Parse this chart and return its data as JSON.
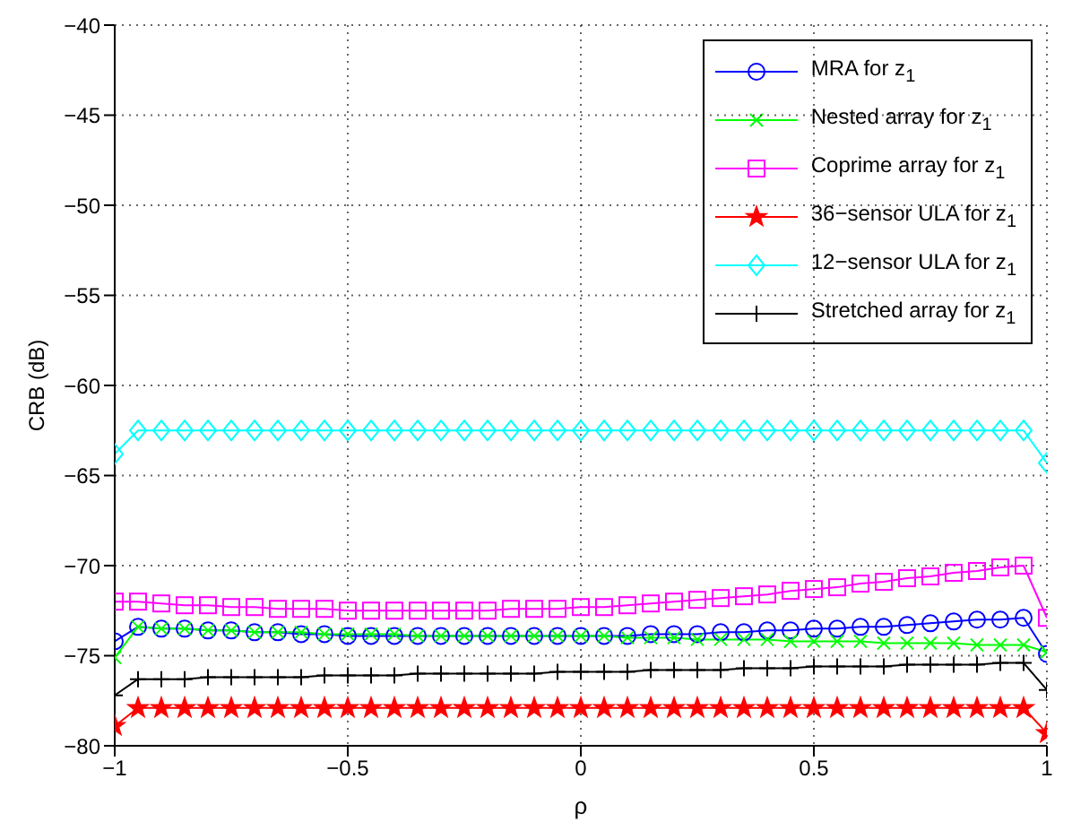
{
  "chart_data": {
    "type": "line",
    "xlabel": "ρ",
    "ylabel": "CRB (dB)",
    "x": [
      -1,
      -0.95,
      -0.9,
      -0.85,
      -0.8,
      -0.75,
      -0.7,
      -0.65,
      -0.6,
      -0.55,
      -0.5,
      -0.45,
      -0.4,
      -0.35,
      -0.3,
      -0.25,
      -0.2,
      -0.15,
      -0.1,
      -0.05,
      0,
      0.05,
      0.1,
      0.15,
      0.2,
      0.25,
      0.3,
      0.35,
      0.4,
      0.45,
      0.5,
      0.55,
      0.6,
      0.65,
      0.7,
      0.75,
      0.8,
      0.85,
      0.9,
      0.95,
      1
    ],
    "xlim": [
      -1,
      1
    ],
    "xticks": [
      -1,
      -0.5,
      0,
      0.5,
      1
    ],
    "ylim": [
      -80,
      -40
    ],
    "yticks": [
      -80,
      -75,
      -70,
      -65,
      -60,
      -55,
      -50,
      -45,
      -40
    ],
    "grid": true,
    "legend": "top right",
    "line_style": "solid",
    "series": [
      {
        "name": "MRA for z$_{1}$",
        "color": "#0000ff",
        "marker": "circle",
        "values": [
          -74.2,
          -73.4,
          -73.5,
          -73.5,
          -73.6,
          -73.6,
          -73.7,
          -73.7,
          -73.8,
          -73.8,
          -73.9,
          -73.9,
          -73.9,
          -73.9,
          -73.9,
          -73.9,
          -73.9,
          -73.9,
          -73.9,
          -73.9,
          -73.9,
          -73.9,
          -73.9,
          -73.8,
          -73.8,
          -73.8,
          -73.7,
          -73.7,
          -73.6,
          -73.6,
          -73.5,
          -73.5,
          -73.4,
          -73.4,
          -73.3,
          -73.2,
          -73.1,
          -73.0,
          -73.0,
          -72.9,
          -74.9
        ]
      },
      {
        "name": "Nested array for z$_{1}$",
        "color": "#00ff00",
        "marker": "cross",
        "values": [
          -75.1,
          -73.4,
          -73.5,
          -73.5,
          -73.6,
          -73.6,
          -73.7,
          -73.7,
          -73.7,
          -73.8,
          -73.8,
          -73.8,
          -73.8,
          -73.9,
          -73.9,
          -73.9,
          -73.9,
          -73.9,
          -73.9,
          -73.9,
          -73.9,
          -73.9,
          -74.0,
          -74.0,
          -74.0,
          -74.1,
          -74.1,
          -74.1,
          -74.1,
          -74.2,
          -74.2,
          -74.2,
          -74.2,
          -74.3,
          -74.3,
          -74.3,
          -74.3,
          -74.4,
          -74.4,
          -74.4,
          -74.8
        ]
      },
      {
        "name": "Coprime array for z$_{1}$",
        "color": "#ff00ff",
        "marker": "square",
        "values": [
          -72.0,
          -72.0,
          -72.1,
          -72.2,
          -72.2,
          -72.3,
          -72.3,
          -72.4,
          -72.4,
          -72.4,
          -72.5,
          -72.5,
          -72.5,
          -72.5,
          -72.5,
          -72.5,
          -72.5,
          -72.4,
          -72.4,
          -72.4,
          -72.3,
          -72.3,
          -72.2,
          -72.1,
          -72.0,
          -71.9,
          -71.8,
          -71.7,
          -71.6,
          -71.4,
          -71.3,
          -71.2,
          -71.0,
          -70.9,
          -70.7,
          -70.6,
          -70.4,
          -70.3,
          -70.1,
          -70.0,
          -72.9
        ]
      },
      {
        "name": "36−sensor ULA for z$_{1}$",
        "color": "#ff0000",
        "marker": "star",
        "values": [
          -78.9,
          -77.9,
          -77.9,
          -77.9,
          -77.9,
          -77.9,
          -77.9,
          -77.9,
          -77.9,
          -77.9,
          -77.9,
          -77.9,
          -77.9,
          -77.9,
          -77.9,
          -77.9,
          -77.9,
          -77.9,
          -77.9,
          -77.9,
          -77.9,
          -77.9,
          -77.9,
          -77.9,
          -77.9,
          -77.9,
          -77.9,
          -77.9,
          -77.9,
          -77.9,
          -77.9,
          -77.9,
          -77.9,
          -77.9,
          -77.9,
          -77.9,
          -77.9,
          -77.9,
          -77.9,
          -77.9,
          -79.3
        ]
      },
      {
        "name": "12−sensor ULA for z$_{1}$",
        "color": "#00ffff",
        "marker": "diamond",
        "values": [
          -63.8,
          -62.5,
          -62.5,
          -62.5,
          -62.5,
          -62.5,
          -62.5,
          -62.5,
          -62.5,
          -62.5,
          -62.5,
          -62.5,
          -62.5,
          -62.5,
          -62.5,
          -62.5,
          -62.5,
          -62.5,
          -62.5,
          -62.5,
          -62.5,
          -62.5,
          -62.5,
          -62.5,
          -62.5,
          -62.5,
          -62.5,
          -62.5,
          -62.5,
          -62.5,
          -62.5,
          -62.5,
          -62.5,
          -62.5,
          -62.5,
          -62.5,
          -62.5,
          -62.5,
          -62.5,
          -62.5,
          -64.3
        ]
      },
      {
        "name": "Stretched array for z$_{1}$",
        "color": "#000000",
        "marker": "plus",
        "values": [
          -77.2,
          -76.3,
          -76.3,
          -76.3,
          -76.2,
          -76.2,
          -76.2,
          -76.2,
          -76.2,
          -76.1,
          -76.1,
          -76.1,
          -76.1,
          -76.0,
          -76.0,
          -76.0,
          -76.0,
          -76.0,
          -76.0,
          -75.9,
          -75.9,
          -75.9,
          -75.9,
          -75.8,
          -75.8,
          -75.8,
          -75.8,
          -75.7,
          -75.7,
          -75.7,
          -75.6,
          -75.6,
          -75.6,
          -75.6,
          -75.5,
          -75.5,
          -75.5,
          -75.5,
          -75.4,
          -75.4,
          -76.9
        ]
      }
    ]
  }
}
